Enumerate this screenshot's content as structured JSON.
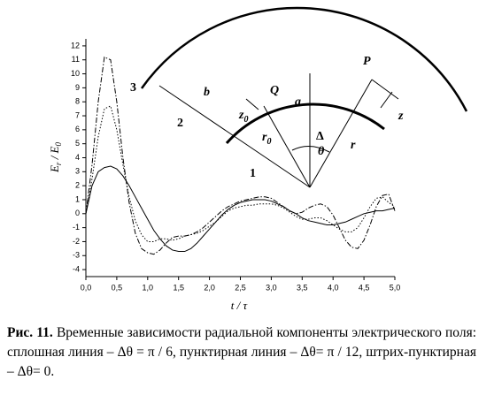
{
  "chart_data": {
    "type": "line",
    "x_label_parts": [
      "t",
      " / ",
      "τ"
    ],
    "y_label_parts": [
      "E",
      "r",
      " / ",
      "E",
      "0"
    ],
    "x": [
      0,
      0.1,
      0.2,
      0.3,
      0.4,
      0.5,
      0.6,
      0.7,
      0.8,
      0.9,
      1,
      1.1,
      1.2,
      1.3,
      1.4,
      1.5,
      1.6,
      1.7,
      1.8,
      1.9,
      2,
      2.1,
      2.2,
      2.3,
      2.4,
      2.5,
      2.6,
      2.7,
      2.8,
      2.9,
      3,
      3.1,
      3.2,
      3.3,
      3.4,
      3.5,
      3.6,
      3.7,
      3.8,
      3.9,
      4,
      4.1,
      4.2,
      4.3,
      4.4,
      4.5,
      4.6,
      4.7,
      4.8,
      4.9,
      5
    ],
    "series": [
      {
        "color": "#000000",
        "dash": "solid",
        "values": [
          0,
          2.0,
          3.0,
          3.3,
          3.4,
          3.2,
          2.7,
          2.0,
          1.2,
          0.4,
          -0.4,
          -1.2,
          -1.8,
          -2.3,
          -2.6,
          -2.7,
          -2.7,
          -2.5,
          -2.1,
          -1.6,
          -1.1,
          -0.6,
          -0.1,
          0.3,
          0.6,
          0.8,
          0.9,
          1.0,
          1.0,
          1.0,
          0.9,
          0.7,
          0.5,
          0.2,
          0,
          -0.3,
          -0.5,
          -0.6,
          -0.7,
          -0.8,
          -0.8,
          -0.7,
          -0.6,
          -0.4,
          -0.2,
          0,
          0.1,
          0.2,
          0.2,
          0.3,
          0.4
        ]
      },
      {
        "color": "#000000",
        "dash": "dotted",
        "values": [
          0,
          2.5,
          5.5,
          7.5,
          7.7,
          6.0,
          3.5,
          1.2,
          -0.5,
          -1.5,
          -2.0,
          -2.0,
          -1.8,
          -1.8,
          -1.9,
          -1.8,
          -1.6,
          -1.5,
          -1.4,
          -1.2,
          -0.9,
          -0.6,
          -0.2,
          0.2,
          0.4,
          0.5,
          0.6,
          0.6,
          0.7,
          0.7,
          0.7,
          0.6,
          0.4,
          0.1,
          -0.2,
          -0.4,
          -0.4,
          -0.3,
          -0.3,
          -0.5,
          -0.8,
          -1.1,
          -1.3,
          -1.3,
          -1.0,
          -0.3,
          0.5,
          1.1,
          1.2,
          0.8,
          0.5
        ]
      },
      {
        "color": "#000000",
        "dash": "dash-dot",
        "values": [
          0,
          3.5,
          8.0,
          11.2,
          11.0,
          8.0,
          4.0,
          0.8,
          -1.4,
          -2.5,
          -2.8,
          -2.9,
          -2.6,
          -2.1,
          -1.7,
          -1.6,
          -1.6,
          -1.5,
          -1.3,
          -1.0,
          -0.6,
          -0.2,
          0.2,
          0.5,
          0.7,
          0.9,
          1.0,
          1.1,
          1.2,
          1.2,
          1.1,
          0.8,
          0.5,
          0.2,
          0.0,
          0.1,
          0.4,
          0.6,
          0.7,
          0.5,
          -0.1,
          -1.0,
          -1.9,
          -2.4,
          -2.5,
          -1.9,
          -0.8,
          0.5,
          1.3,
          1.4,
          0.2
        ]
      }
    ],
    "xlim": [
      0,
      5
    ],
    "ylim": [
      -4.5,
      12.5
    ],
    "xticks": [
      {
        "value": 0,
        "label": "0,0"
      },
      {
        "value": 0.5,
        "label": "0,5"
      },
      {
        "value": 1,
        "label": "1,0"
      },
      {
        "value": 1.5,
        "label": "1,5"
      },
      {
        "value": 2,
        "label": "2,0"
      },
      {
        "value": 2.5,
        "label": "2,5"
      },
      {
        "value": 3,
        "label": "3,0"
      },
      {
        "value": 3.5,
        "label": "3,5"
      },
      {
        "value": 4,
        "label": "4,0"
      },
      {
        "value": 4.5,
        "label": "4,5"
      },
      {
        "value": 5,
        "label": "5,0"
      }
    ],
    "yticks": [
      -4,
      -3,
      -2,
      -1,
      0,
      1,
      2,
      3,
      4,
      5,
      6,
      7,
      8,
      9,
      10,
      11,
      12
    ],
    "inset_labels": {
      "n3": "3",
      "b": "b",
      "n2": "2",
      "Q": "Q",
      "z0": [
        "z",
        "0"
      ],
      "a": "a",
      "r0": [
        "r",
        "0"
      ],
      "delta": "Δ",
      "theta": "θ",
      "P": "P",
      "r": "r",
      "z": "z",
      "n1": "1"
    }
  },
  "caption": {
    "label": "Рис. 11.",
    "text": "Временные зависимости радиальной компоненты электрического поля: сплошная линия – Δθ = π / 6, пунктирная линия – Δθ= π / 12, штрих-пунктирная – Δθ= 0."
  }
}
